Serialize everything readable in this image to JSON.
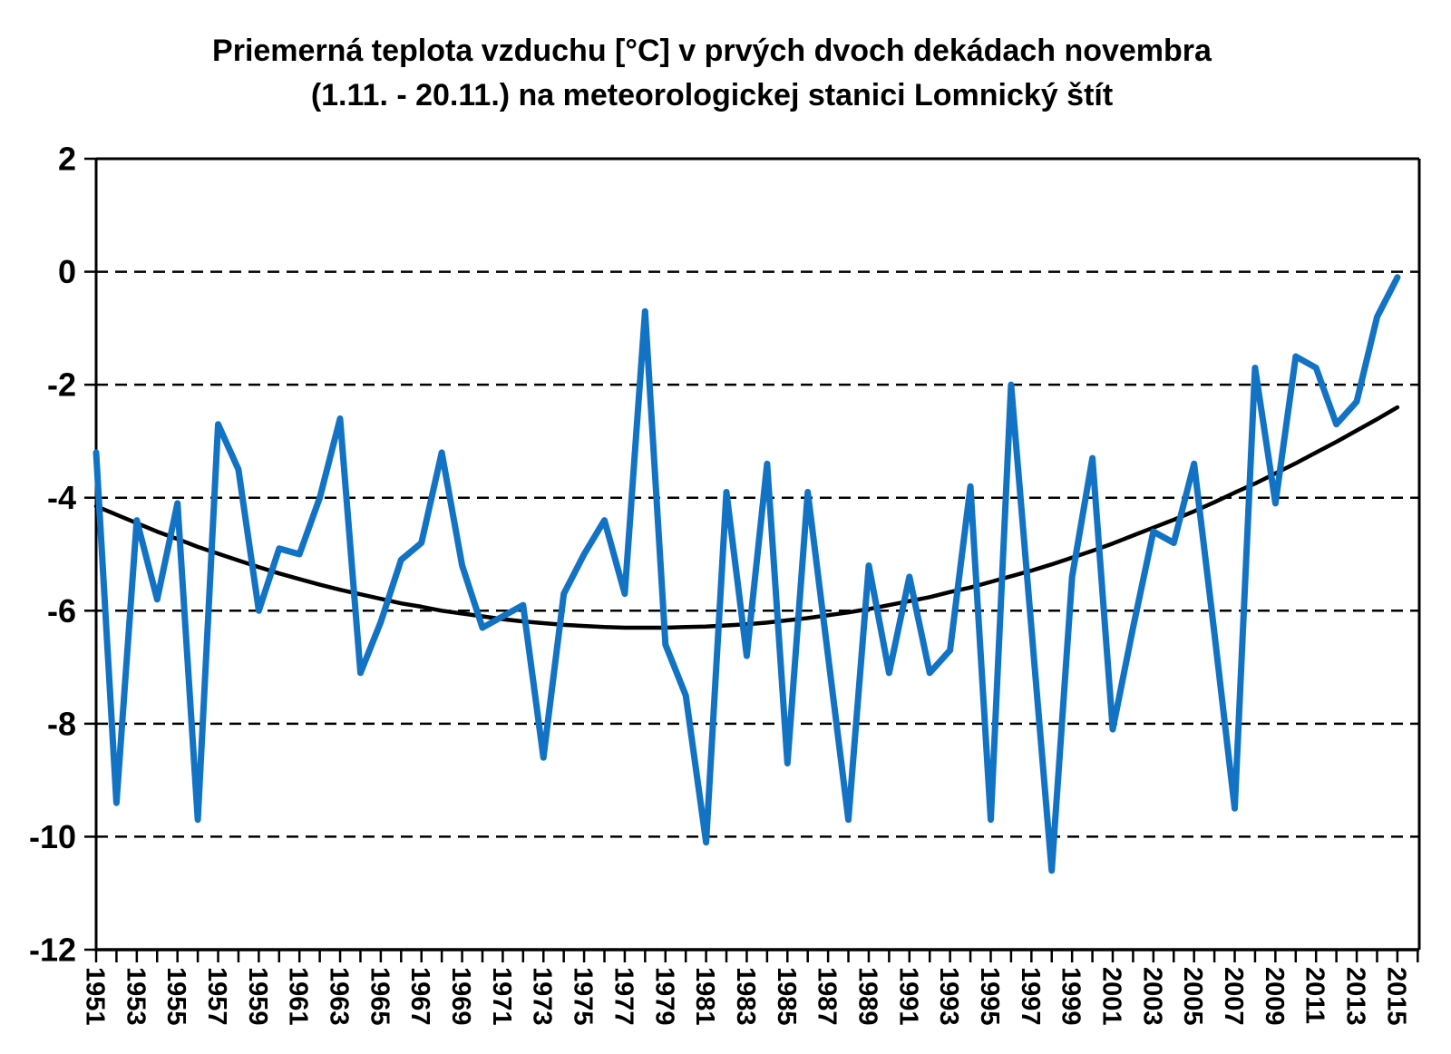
{
  "title": {
    "line1": "Priemerná teplota vzduchu [°C] v prvých dvoch dekádach novembra",
    "line2": "(1.11. - 20.11.) na meteorologickej stanici Lomnický štít"
  },
  "colors": {
    "temperature_line": "#1273C4",
    "trend_line": "#000000",
    "axis": "#000000",
    "gridline": "#000000",
    "background": "#FFFFFF"
  },
  "chart_data": {
    "type": "line",
    "title": "Priemerná teplota vzduchu [°C] v prvých dvoch dekádach novembra (1.11. - 20.11.) na meteorologickej stanici Lomnický štít",
    "xlabel": "",
    "ylabel": "",
    "ylim": [
      -12,
      2
    ],
    "yticks": [
      2,
      0,
      -2,
      -4,
      -6,
      -8,
      -10,
      -12
    ],
    "grid": "horizontal-dashed",
    "legend_position": "none",
    "x_ticks_every_year": true,
    "x_labeled_years": [
      1951,
      1953,
      1955,
      1957,
      1959,
      1961,
      1963,
      1965,
      1967,
      1969,
      1971,
      1973,
      1975,
      1977,
      1979,
      1981,
      1983,
      1985,
      1987,
      1989,
      1991,
      1993,
      1995,
      1997,
      1999,
      2001,
      2003,
      2005,
      2007,
      2009,
      2011,
      2013,
      2015
    ],
    "x": [
      1951,
      1952,
      1953,
      1954,
      1955,
      1956,
      1957,
      1958,
      1959,
      1960,
      1961,
      1962,
      1963,
      1964,
      1965,
      1966,
      1967,
      1968,
      1969,
      1970,
      1971,
      1972,
      1973,
      1974,
      1975,
      1976,
      1977,
      1978,
      1979,
      1980,
      1981,
      1982,
      1983,
      1984,
      1985,
      1986,
      1987,
      1988,
      1989,
      1990,
      1991,
      1992,
      1993,
      1994,
      1995,
      1996,
      1997,
      1998,
      1999,
      2000,
      2001,
      2002,
      2003,
      2004,
      2005,
      2006,
      2007,
      2008,
      2009,
      2010,
      2011,
      2012,
      2013,
      2014,
      2015
    ],
    "series": [
      {
        "name": "temperature",
        "color": "#1273C4",
        "values": [
          -3.2,
          -9.4,
          -4.4,
          -5.8,
          -4.1,
          -9.7,
          -2.7,
          -3.5,
          -6.0,
          -4.9,
          -5.0,
          -4.0,
          -2.6,
          -7.1,
          -6.2,
          -5.1,
          -4.8,
          -3.2,
          -5.2,
          -6.3,
          -6.1,
          -5.9,
          -8.6,
          -5.7,
          -5.0,
          -4.4,
          -5.7,
          -0.7,
          -6.6,
          -7.5,
          -10.1,
          -3.9,
          -6.8,
          -3.4,
          -8.7,
          -3.9,
          -6.8,
          -9.7,
          -5.2,
          -7.1,
          -5.4,
          -7.1,
          -6.7,
          -3.8,
          -9.7,
          -2.0,
          -6.3,
          -10.6,
          -5.4,
          -3.3,
          -8.1,
          -6.3,
          -4.6,
          -4.8,
          -3.4,
          -6.4,
          -9.5,
          -1.7,
          -4.1,
          -1.5,
          -1.7,
          -2.7,
          -2.3,
          -0.8,
          -0.1
        ]
      },
      {
        "name": "trend",
        "color": "#000000",
        "values": [
          -4.15,
          -4.3,
          -4.45,
          -4.6,
          -4.73,
          -4.87,
          -4.99,
          -5.11,
          -5.23,
          -5.34,
          -5.44,
          -5.54,
          -5.63,
          -5.71,
          -5.79,
          -5.87,
          -5.93,
          -6.0,
          -6.05,
          -6.1,
          -6.15,
          -6.19,
          -6.22,
          -6.25,
          -6.27,
          -6.29,
          -6.3,
          -6.3,
          -6.3,
          -6.29,
          -6.28,
          -6.26,
          -6.24,
          -6.21,
          -6.17,
          -6.13,
          -6.08,
          -6.03,
          -5.97,
          -5.9,
          -5.83,
          -5.76,
          -5.67,
          -5.59,
          -5.49,
          -5.39,
          -5.29,
          -5.18,
          -5.06,
          -4.94,
          -4.81,
          -4.67,
          -4.53,
          -4.39,
          -4.24,
          -4.08,
          -3.91,
          -3.75,
          -3.57,
          -3.39,
          -3.2,
          -3.01,
          -2.81,
          -2.61,
          -2.4
        ]
      }
    ]
  }
}
